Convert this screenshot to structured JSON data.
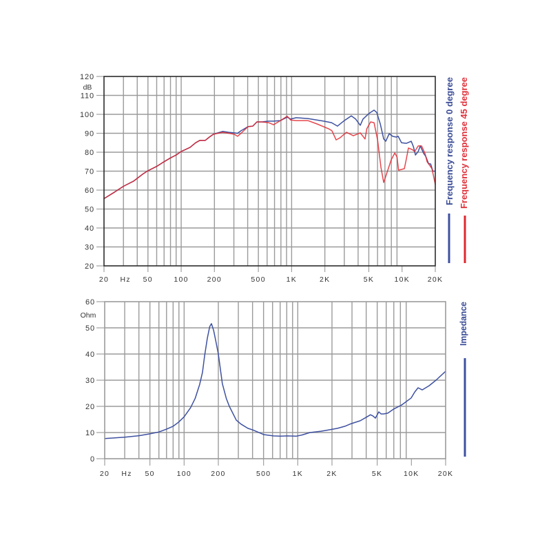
{
  "chart_data": [
    {
      "type": "line",
      "title": "",
      "xlabel": "Hz",
      "ylabel": "dB",
      "xscale": "log",
      "xlim": [
        20,
        20000
      ],
      "ylim": [
        20,
        120
      ],
      "grid": true,
      "yticks": [
        20,
        30,
        40,
        50,
        60,
        70,
        80,
        90,
        100,
        110,
        120
      ],
      "ytick_labels": [
        "20",
        "30",
        "40",
        "50",
        "60",
        "70",
        "80",
        "90",
        "100",
        "110",
        "120"
      ],
      "yunit": "dB",
      "xticks": [
        {
          "value": 20,
          "label": "20"
        },
        {
          "value": 50,
          "label": "50"
        },
        {
          "value": 100,
          "label": "100"
        },
        {
          "value": 200,
          "label": "200"
        },
        {
          "value": 500,
          "label": "500"
        },
        {
          "value": 1000,
          "label": "1K"
        },
        {
          "value": 2000,
          "label": "2K"
        },
        {
          "value": 5000,
          "label": "5K"
        },
        {
          "value": 10000,
          "label": "10K"
        },
        {
          "value": 20000,
          "label": "20K"
        }
      ],
      "xunit": {
        "label": "Hz",
        "at": 30
      },
      "legend_position": "right (vertical text)",
      "series": [
        {
          "name": "Frequency response 0 degree",
          "color": "#3d50a0",
          "points": [
            [
              20,
              55.5
            ],
            [
              25,
              59
            ],
            [
              30,
              62
            ],
            [
              37,
              64.7
            ],
            [
              45,
              68.5
            ],
            [
              50,
              70.2
            ],
            [
              60,
              72.5
            ],
            [
              70,
              75
            ],
            [
              80,
              77
            ],
            [
              90,
              78.5
            ],
            [
              100,
              80.4
            ],
            [
              120,
              82.5
            ],
            [
              135,
              85
            ],
            [
              148,
              86.3
            ],
            [
              165,
              86.2
            ],
            [
              180,
              88
            ],
            [
              196,
              89.5
            ],
            [
              237,
              91
            ],
            [
              270,
              90.5
            ],
            [
              302,
              90.2
            ],
            [
              324,
              90
            ],
            [
              348,
              91.3
            ],
            [
              403,
              93.5
            ],
            [
              445,
              93.8
            ],
            [
              485,
              96
            ],
            [
              540,
              96
            ],
            [
              619,
              96.4
            ],
            [
              685,
              96.4
            ],
            [
              791,
              96.7
            ],
            [
              912,
              98.5
            ],
            [
              980,
              97.5
            ],
            [
              1100,
              98.2
            ],
            [
              1404,
              97.8
            ],
            [
              1954,
              96.4
            ],
            [
              2300,
              95.6
            ],
            [
              2604,
              93.8
            ],
            [
              3000,
              96.7
            ],
            [
              3472,
              99.2
            ],
            [
              3800,
              97.5
            ],
            [
              4185,
              94.2
            ],
            [
              4430,
              97.5
            ],
            [
              5000,
              100.4
            ],
            [
              5576,
              102.2
            ],
            [
              5900,
              101
            ],
            [
              6350,
              95
            ],
            [
              6820,
              87
            ],
            [
              7120,
              85.8
            ],
            [
              7650,
              89.8
            ],
            [
              8220,
              88.4
            ],
            [
              8830,
              88
            ],
            [
              9220,
              88.4
            ],
            [
              9900,
              85
            ],
            [
              10960,
              84.7
            ],
            [
              12120,
              85.8
            ],
            [
              12660,
              83
            ],
            [
              13220,
              78.5
            ],
            [
              14000,
              80.4
            ],
            [
              14620,
              83.3
            ],
            [
              15710,
              79.3
            ],
            [
              16400,
              77.8
            ],
            [
              17380,
              74
            ],
            [
              18160,
              73.8
            ],
            [
              18980,
              70
            ],
            [
              20000,
              70
            ]
          ]
        },
        {
          "name": "Frequency response 45 degree",
          "color": "#e0262e",
          "points": [
            [
              20,
              55.5
            ],
            [
              25,
              59
            ],
            [
              30,
              62
            ],
            [
              37,
              64.7
            ],
            [
              45,
              68.5
            ],
            [
              50,
              70.2
            ],
            [
              60,
              72.5
            ],
            [
              70,
              75
            ],
            [
              80,
              77
            ],
            [
              90,
              78.5
            ],
            [
              100,
              80.4
            ],
            [
              120,
              82.5
            ],
            [
              135,
              85
            ],
            [
              148,
              86.3
            ],
            [
              165,
              86.2
            ],
            [
              180,
              88
            ],
            [
              196,
              89.5
            ],
            [
              237,
              90.5
            ],
            [
              270,
              90
            ],
            [
              302,
              89.5
            ],
            [
              324,
              88.4
            ],
            [
              348,
              90
            ],
            [
              403,
              93.5
            ],
            [
              445,
              93.8
            ],
            [
              485,
              96
            ],
            [
              540,
              96
            ],
            [
              619,
              95.6
            ],
            [
              685,
              94.5
            ],
            [
              791,
              96.7
            ],
            [
              912,
              99
            ],
            [
              980,
              97
            ],
            [
              1100,
              96.7
            ],
            [
              1404,
              96.7
            ],
            [
              1700,
              94.9
            ],
            [
              2160,
              92.4
            ],
            [
              2320,
              91.3
            ],
            [
              2530,
              86.5
            ],
            [
              2740,
              87.6
            ],
            [
              3140,
              90.5
            ],
            [
              3620,
              88.7
            ],
            [
              4185,
              90.2
            ],
            [
              4625,
              87
            ],
            [
              4800,
              92.4
            ],
            [
              5190,
              96
            ],
            [
              5576,
              95.6
            ],
            [
              6000,
              86.5
            ],
            [
              6440,
              72
            ],
            [
              6820,
              64
            ],
            [
              7330,
              69.5
            ],
            [
              7980,
              76
            ],
            [
              8590,
              79.6
            ],
            [
              9000,
              77.5
            ],
            [
              9300,
              70.5
            ],
            [
              10500,
              71.3
            ],
            [
              10960,
              76.7
            ],
            [
              11430,
              82.2
            ],
            [
              12280,
              81.5
            ],
            [
              13020,
              80.4
            ],
            [
              14000,
              83.3
            ],
            [
              15030,
              83.3
            ],
            [
              16140,
              79.3
            ],
            [
              16870,
              75
            ],
            [
              18660,
              71.3
            ],
            [
              20000,
              63
            ]
          ]
        }
      ]
    },
    {
      "type": "line",
      "title": "",
      "xlabel": "Hz",
      "ylabel": "Ohm",
      "xscale": "log",
      "xlim": [
        20,
        20000
      ],
      "ylim": [
        0,
        60
      ],
      "grid": true,
      "yticks": [
        0,
        10,
        20,
        30,
        40,
        50,
        60
      ],
      "ytick_labels": [
        "0",
        "10",
        "20",
        "30",
        "40",
        "50",
        "60"
      ],
      "yunit": "Ohm",
      "xticks": [
        {
          "value": 20,
          "label": "20"
        },
        {
          "value": 50,
          "label": "50"
        },
        {
          "value": 100,
          "label": "100"
        },
        {
          "value": 200,
          "label": "200"
        },
        {
          "value": 500,
          "label": "500"
        },
        {
          "value": 1000,
          "label": "1K"
        },
        {
          "value": 2000,
          "label": "2K"
        },
        {
          "value": 5000,
          "label": "5K"
        },
        {
          "value": 10000,
          "label": "10K"
        },
        {
          "value": 20000,
          "label": "20K"
        }
      ],
      "xunit": {
        "label": "Hz",
        "at": 30
      },
      "legend_position": "right (vertical text)",
      "series": [
        {
          "name": "Impedance",
          "color": "#3d50a0",
          "points": [
            [
              20,
              7.7
            ],
            [
              30,
              8.2
            ],
            [
              40,
              8.8
            ],
            [
              50,
              9.5
            ],
            [
              60,
              10.2
            ],
            [
              70,
              11.3
            ],
            [
              80,
              12.4
            ],
            [
              89,
              13.9
            ],
            [
              100,
              16
            ],
            [
              114,
              19.5
            ],
            [
              125,
              23
            ],
            [
              137,
              28.4
            ],
            [
              145,
              33
            ],
            [
              151,
              39
            ],
            [
              160,
              46
            ],
            [
              168,
              50.5
            ],
            [
              174,
              51.6
            ],
            [
              182,
              49
            ],
            [
              190,
              45
            ],
            [
              200,
              40
            ],
            [
              217,
              28.7
            ],
            [
              235,
              23
            ],
            [
              250,
              20
            ],
            [
              288,
              14.7
            ],
            [
              317,
              13.2
            ],
            [
              364,
              11.6
            ],
            [
              402,
              11
            ],
            [
              502,
              9.2
            ],
            [
              611,
              8.7
            ],
            [
              700,
              8.6
            ],
            [
              807,
              8.7
            ],
            [
              968,
              8.6
            ],
            [
              1100,
              9.1
            ],
            [
              1280,
              10
            ],
            [
              1600,
              10.5
            ],
            [
              1866,
              11
            ],
            [
              2236,
              11.6
            ],
            [
              2600,
              12.4
            ],
            [
              2954,
              13.4
            ],
            [
              3542,
              14.5
            ],
            [
              4072,
              16
            ],
            [
              4365,
              16.8
            ],
            [
              4600,
              16.3
            ],
            [
              4820,
              15.5
            ],
            [
              5165,
              17.9
            ],
            [
              5400,
              17.1
            ],
            [
              5700,
              17.1
            ],
            [
              6195,
              17.4
            ],
            [
              7000,
              19
            ],
            [
              8190,
              20.5
            ],
            [
              9960,
              23.2
            ],
            [
              10700,
              25.5
            ],
            [
              11450,
              27.1
            ],
            [
              12450,
              26.3
            ],
            [
              14320,
              27.9
            ],
            [
              16460,
              30
            ],
            [
              20000,
              33.4
            ]
          ]
        }
      ]
    }
  ]
}
